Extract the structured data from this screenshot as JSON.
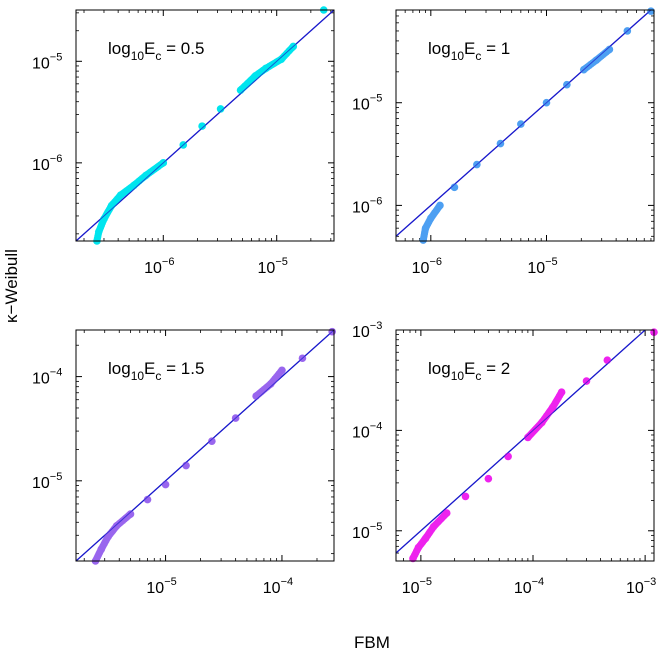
{
  "figure": {
    "xlabel": "FBM",
    "ylabel": "κ−Weibull"
  },
  "chart_data": [
    {
      "type": "scatter",
      "panel_label": {
        "prefix": "log",
        "sub": "10",
        "mid": "E",
        "sub2": "c",
        "suffix": " = 0.5"
      },
      "color": "#00e5ee",
      "scale": "log",
      "xlim": [
        1.7e-07,
        3.2e-05
      ],
      "ylim": [
        1.7e-07,
        3.2e-05
      ],
      "x_ticks": [
        1e-06,
        1e-05
      ],
      "y_ticks": [
        1e-06,
        1e-05
      ],
      "x_tick_labels": [
        "10^-6",
        "10^-5"
      ],
      "y_tick_labels": [
        "10^-6",
        "10^-5"
      ],
      "points": {
        "x": [
          2.6e-07,
          2.7e-07,
          3e-07,
          3.5e-07,
          4.2e-07,
          5.5e-07,
          7e-07,
          1e-06,
          1.5e-06,
          2.2e-06,
          3.2e-06,
          4.8e-06,
          6.5e-06,
          8e-06,
          1.1e-05,
          1.4e-05,
          2.6e-05
        ],
        "y": [
          1.7e-07,
          2.1e-07,
          2.8e-07,
          3.8e-07,
          4.8e-07,
          6e-07,
          7.5e-07,
          1e-06,
          1.5e-06,
          2.3e-06,
          3.4e-06,
          5.2e-06,
          7.2e-06,
          8.5e-06,
          1.05e-05,
          1.4e-05,
          3.2e-05
        ]
      },
      "reference_line": "y = x"
    },
    {
      "type": "scatter",
      "panel_label": {
        "prefix": "log",
        "sub": "10",
        "mid": "E",
        "sub2": "c",
        "suffix": " = 1"
      },
      "color": "#4d9ff2",
      "scale": "log",
      "xlim": [
        5e-07,
        8.5e-05
      ],
      "ylim": [
        4.5e-07,
        8e-05
      ],
      "x_ticks": [
        1e-06,
        1e-05
      ],
      "y_ticks": [
        1e-06,
        1e-05
      ],
      "x_tick_labels": [
        "10^-6",
        "10^-5"
      ],
      "y_tick_labels": [
        "10^-6",
        "10^-5"
      ],
      "points": {
        "x": [
          8.6e-07,
          9e-07,
          1e-06,
          1.2e-06,
          1.6e-06,
          2.5e-06,
          4e-06,
          6e-06,
          1e-05,
          1.5e-05,
          2.1e-05,
          2.7e-05,
          3.5e-05,
          5e-05,
          8e-05
        ],
        "y": [
          4.6e-07,
          6e-07,
          7.5e-07,
          1e-06,
          1.5e-06,
          2.5e-06,
          4e-06,
          6.2e-06,
          1e-05,
          1.5e-05,
          2.1e-05,
          2.6e-05,
          3.3e-05,
          5e-05,
          7.8e-05
        ]
      },
      "reference_line": "y = x"
    },
    {
      "type": "scatter",
      "panel_label": {
        "prefix": "log",
        "sub": "10",
        "mid": "E",
        "sub2": "c",
        "suffix": " = 1.5"
      },
      "color": "#9966ee",
      "scale": "log",
      "xlim": [
        1.7e-06,
        0.00028
      ],
      "ylim": [
        1.7e-06,
        0.00028
      ],
      "x_ticks": [
        1e-05,
        0.0001
      ],
      "y_ticks": [
        1e-05,
        0.0001
      ],
      "x_tick_labels": [
        "10^-5",
        "10^-4"
      ],
      "y_tick_labels": [
        "10^-5",
        "10^-4"
      ],
      "points": {
        "x": [
          2.5e-06,
          2.8e-06,
          3.2e-06,
          3.8e-06,
          5e-06,
          7e-06,
          1e-05,
          1.5e-05,
          2.5e-05,
          4e-05,
          6e-05,
          8e-05,
          0.0001,
          0.00015,
          0.00027
        ],
        "y": [
          1.7e-06,
          2.2e-06,
          2.9e-06,
          3.7e-06,
          4.8e-06,
          6.6e-06,
          9.2e-06,
          1.4e-05,
          2.4e-05,
          4e-05,
          6.5e-05,
          8.5e-05,
          0.000115,
          0.00015,
          0.00027
        ]
      },
      "reference_line": "y = x"
    },
    {
      "type": "scatter",
      "panel_label": {
        "prefix": "log",
        "sub": "10",
        "mid": "E",
        "sub2": "c",
        "suffix": " = 2"
      },
      "color": "#ee22ee",
      "scale": "log",
      "xlim": [
        6e-06,
        0.0012
      ],
      "ylim": [
        5e-06,
        0.001
      ],
      "x_ticks": [
        1e-05,
        0.0001,
        0.001
      ],
      "y_ticks": [
        1e-05,
        0.0001,
        0.001
      ],
      "x_tick_labels": [
        "10^-5",
        "10^-4",
        "10^-3"
      ],
      "y_tick_labels": [
        "10^-5",
        "10^-4",
        "10^-3"
      ],
      "points": {
        "x": [
          8.5e-06,
          9.5e-06,
          1.1e-05,
          1.3e-05,
          1.7e-05,
          2.5e-05,
          4e-05,
          6e-05,
          9e-05,
          0.00012,
          0.00015,
          0.00018,
          0.0003,
          0.00046,
          0.0012
        ],
        "y": [
          5.3e-06,
          6.8e-06,
          8.4e-06,
          1.1e-05,
          1.5e-05,
          2.2e-05,
          3.3e-05,
          5.5e-05,
          8.5e-05,
          0.00012,
          0.00017,
          0.00024,
          0.00031,
          0.0005,
          0.00095
        ]
      },
      "reference_line": "y = x"
    }
  ]
}
